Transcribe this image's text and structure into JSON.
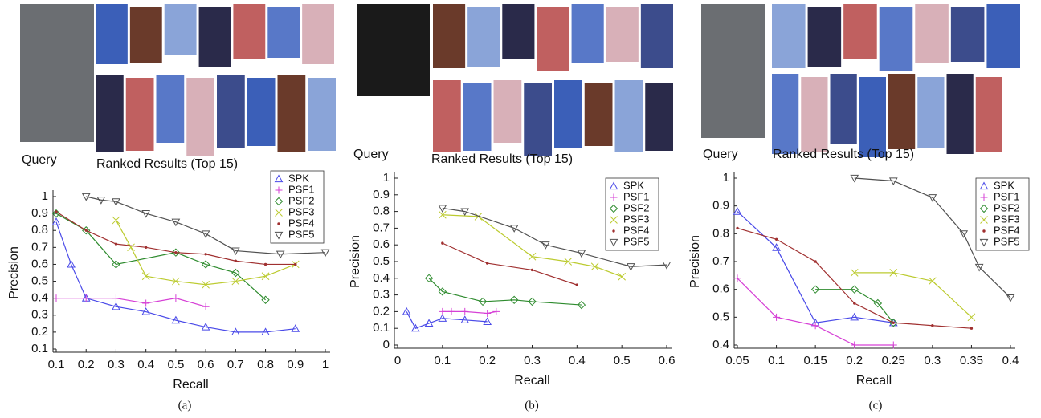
{
  "chart_data": [
    {
      "type": "line",
      "query_label": "Query",
      "results_label": "Ranked Results (Top 15)",
      "x_label": "Recall",
      "y_label": "Precision",
      "caption": "(a)",
      "xlim": [
        0.1,
        1
      ],
      "xticks": [
        0.1,
        0.2,
        0.3,
        0.4,
        0.5,
        0.6,
        0.7,
        0.8,
        0.9,
        1
      ],
      "ylim": [
        0.1,
        1
      ],
      "yticks": [
        0.1,
        0.2,
        0.3,
        0.4,
        0.5,
        0.6,
        0.7,
        0.8,
        0.9,
        1
      ],
      "series": [
        {
          "name": "SPK",
          "color": "#4a4ae8",
          "marker": "triangle-up",
          "x": [
            0.1,
            0.15,
            0.2,
            0.3,
            0.4,
            0.5,
            0.6,
            0.7,
            0.8,
            0.9
          ],
          "values": [
            0.85,
            0.6,
            0.4,
            0.35,
            0.32,
            0.27,
            0.23,
            0.2,
            0.2,
            0.22
          ]
        },
        {
          "name": "PSF1",
          "color": "#d640d6",
          "marker": "plus",
          "x": [
            0.1,
            0.2,
            0.3,
            0.4,
            0.5,
            0.6
          ],
          "values": [
            0.4,
            0.4,
            0.4,
            0.37,
            0.4,
            0.35
          ]
        },
        {
          "name": "PSF2",
          "color": "#2e8b2e",
          "marker": "diamond",
          "x": [
            0.1,
            0.2,
            0.3,
            0.5,
            0.6,
            0.7,
            0.8
          ],
          "values": [
            0.9,
            0.8,
            0.6,
            0.67,
            0.6,
            0.55,
            0.39
          ]
        },
        {
          "name": "PSF3",
          "color": "#bccb30",
          "marker": "cross",
          "x": [
            0.3,
            0.35,
            0.4,
            0.5,
            0.6,
            0.7,
            0.8,
            0.9
          ],
          "values": [
            0.86,
            0.7,
            0.53,
            0.5,
            0.48,
            0.5,
            0.53,
            0.6
          ]
        },
        {
          "name": "PSF4",
          "color": "#a03030",
          "marker": "dot",
          "x": [
            0.1,
            0.2,
            0.3,
            0.4,
            0.5,
            0.6,
            0.7,
            0.8,
            0.9
          ],
          "values": [
            0.91,
            0.8,
            0.72,
            0.7,
            0.67,
            0.66,
            0.62,
            0.6,
            0.6
          ]
        },
        {
          "name": "PSF5",
          "color": "#505050",
          "marker": "triangle-down",
          "x": [
            0.2,
            0.25,
            0.3,
            0.4,
            0.5,
            0.6,
            0.7,
            0.85,
            1
          ],
          "values": [
            1,
            0.98,
            0.97,
            0.9,
            0.85,
            0.78,
            0.68,
            0.66,
            0.67
          ]
        }
      ]
    },
    {
      "type": "line",
      "query_label": "Query",
      "results_label": "Ranked Results (Top 15)",
      "x_label": "Recall",
      "y_label": "Precision",
      "caption": "(b)",
      "xlim": [
        0,
        0.6
      ],
      "xticks": [
        0,
        0.1,
        0.2,
        0.3,
        0.4,
        0.5,
        0.6
      ],
      "ylim": [
        0,
        1
      ],
      "yticks": [
        0,
        0.1,
        0.2,
        0.3,
        0.4,
        0.5,
        0.6,
        0.7,
        0.8,
        0.9,
        1
      ],
      "series": [
        {
          "name": "SPK",
          "color": "#4a4ae8",
          "marker": "triangle-up",
          "x": [
            0.02,
            0.04,
            0.07,
            0.1,
            0.15,
            0.2
          ],
          "values": [
            0.2,
            0.1,
            0.13,
            0.16,
            0.15,
            0.14
          ]
        },
        {
          "name": "PSF1",
          "color": "#d640d6",
          "marker": "plus",
          "x": [
            0.1,
            0.12,
            0.15,
            0.2,
            0.22
          ],
          "values": [
            0.2,
            0.2,
            0.2,
            0.19,
            0.2
          ]
        },
        {
          "name": "PSF2",
          "color": "#2e8b2e",
          "marker": "diamond",
          "x": [
            0.07,
            0.1,
            0.19,
            0.26,
            0.3,
            0.41
          ],
          "values": [
            0.4,
            0.32,
            0.26,
            0.27,
            0.26,
            0.24
          ]
        },
        {
          "name": "PSF3",
          "color": "#bccb30",
          "marker": "cross",
          "x": [
            0.1,
            0.18,
            0.3,
            0.38,
            0.44,
            0.5
          ],
          "values": [
            0.78,
            0.77,
            0.53,
            0.5,
            0.47,
            0.41
          ]
        },
        {
          "name": "PSF4",
          "color": "#a03030",
          "marker": "dot",
          "x": [
            0.1,
            0.2,
            0.3,
            0.4
          ],
          "values": [
            0.61,
            0.49,
            0.45,
            0.36
          ]
        },
        {
          "name": "PSF5",
          "color": "#505050",
          "marker": "triangle-down",
          "x": [
            0.1,
            0.15,
            0.26,
            0.33,
            0.41,
            0.52,
            0.6
          ],
          "values": [
            0.82,
            0.8,
            0.7,
            0.6,
            0.55,
            0.47,
            0.48
          ]
        }
      ]
    },
    {
      "type": "line",
      "query_label": "Query",
      "results_label": "Ranked Results (Top 15)",
      "x_label": "Recall",
      "y_label": "Precision",
      "caption": "(c)",
      "xlim": [
        0.05,
        0.4
      ],
      "xticks": [
        0.05,
        0.1,
        0.15,
        0.2,
        0.25,
        0.3,
        0.35,
        0.4
      ],
      "ylim": [
        0.4,
        1
      ],
      "yticks": [
        0.4,
        0.5,
        0.6,
        0.7,
        0.8,
        0.9,
        1
      ],
      "series": [
        {
          "name": "SPK",
          "color": "#4a4ae8",
          "marker": "triangle-up",
          "x": [
            0.05,
            0.1,
            0.15,
            0.2,
            0.25
          ],
          "values": [
            0.88,
            0.75,
            0.48,
            0.5,
            0.48
          ]
        },
        {
          "name": "PSF1",
          "color": "#d640d6",
          "marker": "plus",
          "x": [
            0.05,
            0.1,
            0.15,
            0.2,
            0.25
          ],
          "values": [
            0.64,
            0.5,
            0.47,
            0.4,
            0.4
          ]
        },
        {
          "name": "PSF2",
          "color": "#2e8b2e",
          "marker": "diamond",
          "x": [
            0.15,
            0.2,
            0.23,
            0.25
          ],
          "values": [
            0.6,
            0.6,
            0.55,
            0.48
          ]
        },
        {
          "name": "PSF3",
          "color": "#bccb30",
          "marker": "cross",
          "x": [
            0.2,
            0.25,
            0.3,
            0.35
          ],
          "values": [
            0.66,
            0.66,
            0.63,
            0.5
          ]
        },
        {
          "name": "PSF4",
          "color": "#a03030",
          "marker": "dot",
          "x": [
            0.05,
            0.1,
            0.15,
            0.2,
            0.25,
            0.3,
            0.35
          ],
          "values": [
            0.82,
            0.78,
            0.7,
            0.55,
            0.48,
            0.47,
            0.46
          ]
        },
        {
          "name": "PSF5",
          "color": "#505050",
          "marker": "triangle-down",
          "x": [
            0.2,
            0.25,
            0.3,
            0.34,
            0.36,
            0.4
          ],
          "values": [
            1,
            0.99,
            0.93,
            0.8,
            0.68,
            0.57
          ]
        }
      ]
    }
  ]
}
